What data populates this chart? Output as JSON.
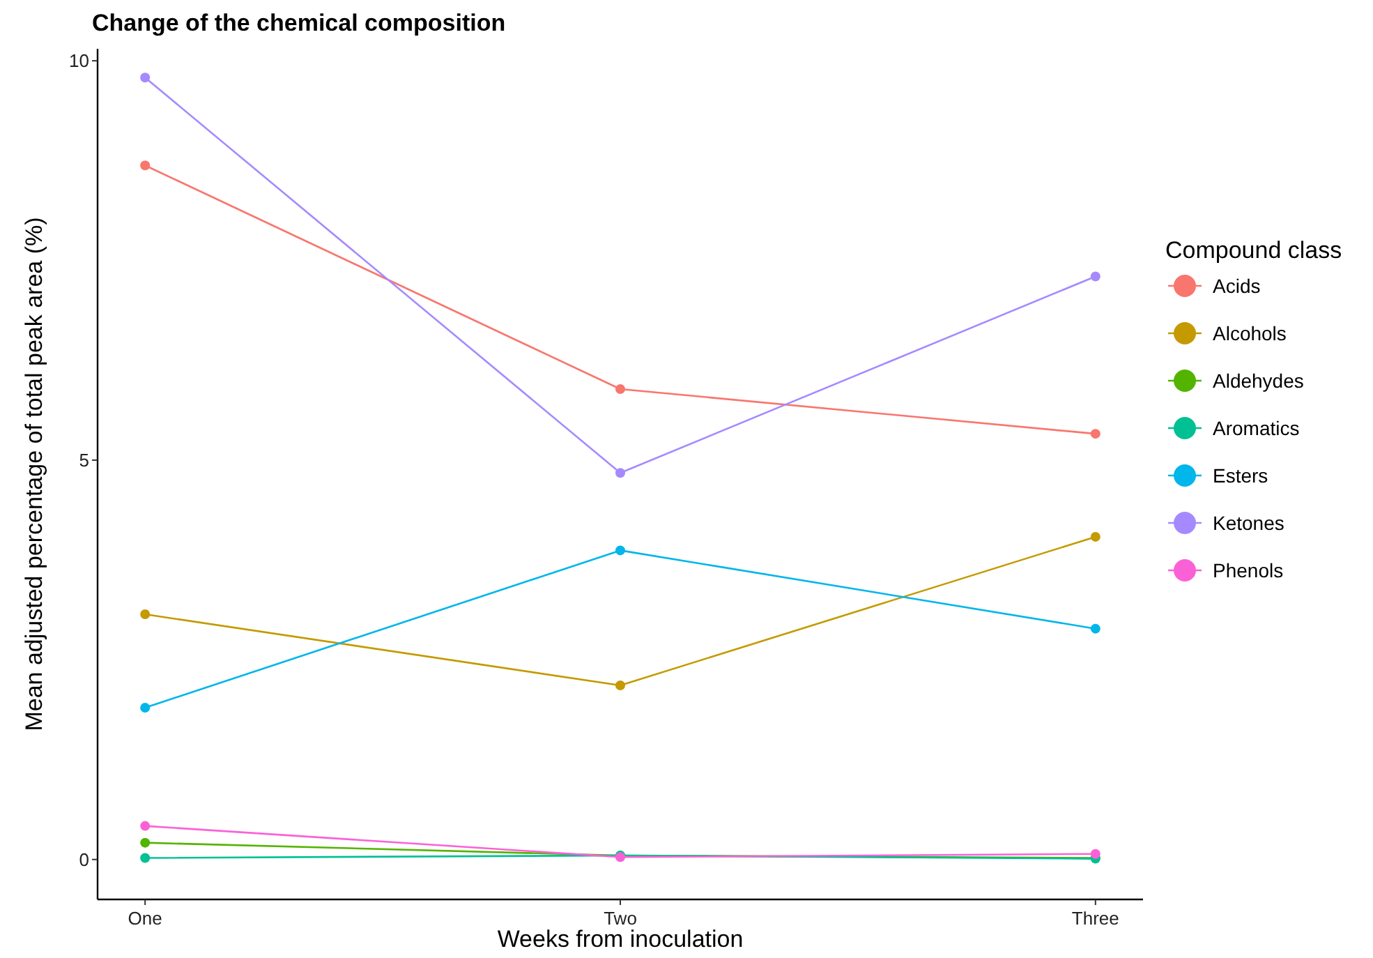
{
  "chart_data": {
    "type": "line",
    "title": "Change of the chemical composition",
    "xlabel": "Weeks from inoculation",
    "ylabel": "Mean adjusted percentage of total peak area (%)",
    "legend_title": "Compound class",
    "categories": [
      "One",
      "Two",
      "Three"
    ],
    "series": [
      {
        "name": "Acids",
        "color": "#f8766d",
        "values": [
          8.69,
          5.89,
          5.33
        ]
      },
      {
        "name": "Alcohols",
        "color": "#c49a00",
        "values": [
          3.07,
          2.18,
          4.04
        ]
      },
      {
        "name": "Aldehydes",
        "color": "#53b400",
        "values": [
          0.21,
          0.05,
          0.02
        ]
      },
      {
        "name": "Aromatics",
        "color": "#00c094",
        "values": [
          0.02,
          0.05,
          0.01
        ]
      },
      {
        "name": "Esters",
        "color": "#00b6eb",
        "values": [
          1.9,
          3.87,
          2.89
        ]
      },
      {
        "name": "Ketones",
        "color": "#a58aff",
        "values": [
          9.79,
          4.84,
          7.3
        ]
      },
      {
        "name": "Phenols",
        "color": "#fb61d7",
        "values": [
          0.42,
          0.03,
          0.07
        ]
      }
    ],
    "ylim": [
      -0.5,
      10.15
    ],
    "yticks": [
      0,
      5,
      10
    ],
    "grid": false,
    "legend": "right",
    "marker": "circle",
    "line_style": "solid"
  }
}
